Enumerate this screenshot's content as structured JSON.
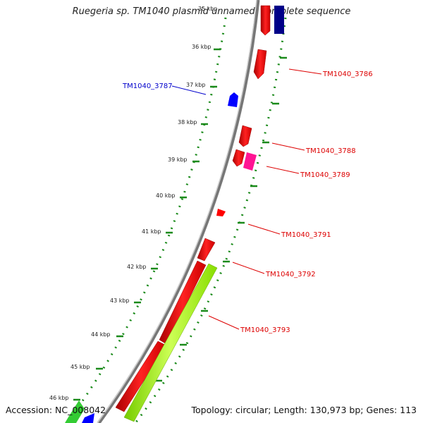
{
  "title": "Ruegeria sp. TM1040 plasmid unnamed, complete sequence",
  "accession": "Accession: NC_008042",
  "summary": "Topology: circular; Length: 130,973 bp; Genes: 113",
  "ticks": [
    "35 kbp",
    "36 kbp",
    "37 kbp",
    "38 kbp",
    "39 kbp",
    "40 kbp",
    "41 kbp",
    "42 kbp",
    "43 kbp",
    "44 kbp",
    "45 kbp",
    "46 kbp"
  ],
  "genes": [
    {
      "label": "TM1040_3786",
      "color": "#dd0000"
    },
    {
      "label": "TM1040_3787",
      "color": "#0000cc"
    },
    {
      "label": "TM1040_3788",
      "color": "#dd0000"
    },
    {
      "label": "TM1040_3789",
      "color": "#dd0000"
    },
    {
      "label": "TM1040_3791",
      "color": "#dd0000"
    },
    {
      "label": "TM1040_3792",
      "color": "#dd0000"
    },
    {
      "label": "TM1040_3793",
      "color": "#dd0000"
    }
  ],
  "colors": {
    "backbone": "#888888",
    "tick_green": "#1a8a1a",
    "cds_red": "#ff0000",
    "cds_blue": "#0000ff",
    "cds_navy": "#000088",
    "cds_pink": "#ff1493",
    "cds_lime": "#99ff00",
    "cds_green": "#33cc33"
  }
}
